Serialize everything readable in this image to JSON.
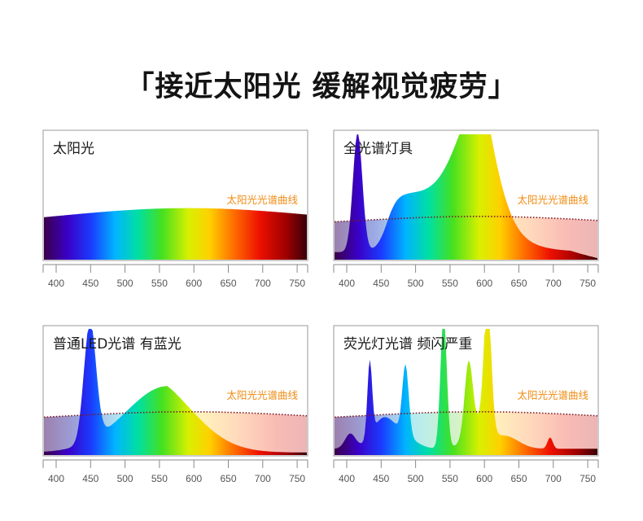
{
  "headline": "「接近太阳光 缓解视觉疲劳」",
  "colors": {
    "sun_label": "#f08c14",
    "sun_curve": "#7a1a24",
    "frame": "#9a9a9a"
  },
  "panels": [
    {
      "id": "sunlight",
      "title": "太阳光",
      "sun_label": "太阳光光谱曲线",
      "show_sun_dotted": false,
      "ticks": [
        "400",
        "450",
        "500",
        "550",
        "600",
        "650",
        "700",
        "750"
      ]
    },
    {
      "id": "full-spectrum",
      "title": "全光谱灯具",
      "sun_label": "太阳光光谱曲线",
      "show_sun_dotted": true,
      "ticks": [
        "400",
        "450",
        "500",
        "550",
        "600",
        "650",
        "700",
        "750"
      ]
    },
    {
      "id": "led",
      "title": "普通LED光谱 有蓝光",
      "sun_label": "太阳光光谱曲线",
      "show_sun_dotted": true,
      "ticks": [
        "400",
        "450",
        "500",
        "550",
        "600",
        "650",
        "700",
        "750"
      ]
    },
    {
      "id": "fluorescent",
      "title": "荧光灯光谱 频闪严重",
      "sun_label": "太阳光光谱曲线",
      "show_sun_dotted": true,
      "ticks": [
        "400",
        "450",
        "500",
        "550",
        "600",
        "650",
        "700",
        "750"
      ]
    }
  ]
}
